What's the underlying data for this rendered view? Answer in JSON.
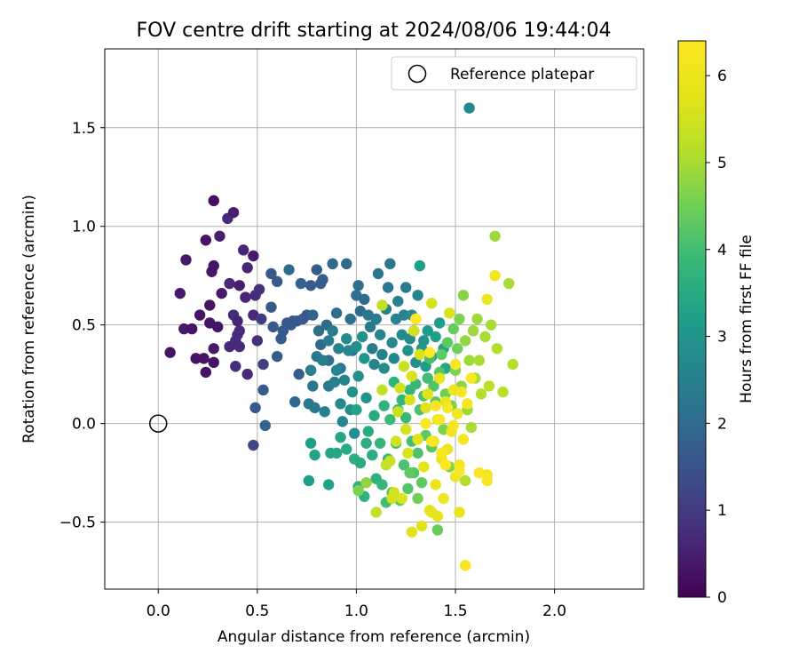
{
  "chart_data": {
    "type": "scatter",
    "title": "FOV centre drift starting at 2024/08/06 19:44:04",
    "xlabel": "Angular distance from reference (arcmin)",
    "ylabel": "Rotation from reference (arcmin)",
    "xlim": [
      -0.27,
      2.45
    ],
    "ylim": [
      -0.84,
      1.9
    ],
    "xticks": [
      0.0,
      0.5,
      1.0,
      1.5,
      2.0
    ],
    "xtick_labels": [
      "0.0",
      "0.5",
      "1.0",
      "1.5",
      "2.0"
    ],
    "yticks": [
      -0.5,
      0.0,
      0.5,
      1.0,
      1.5
    ],
    "ytick_labels": [
      "−0.5",
      "0.0",
      "0.5",
      "1.0",
      "1.5"
    ],
    "grid": true,
    "legend": {
      "position": "upper-right",
      "entries": [
        "Reference platepar"
      ]
    },
    "reference_point": {
      "x": 0.0,
      "y": 0.0,
      "label": "Reference platepar"
    },
    "colorbar": {
      "label": "Hours from first FF file",
      "colormap": "viridis",
      "range": [
        0,
        6.4
      ],
      "ticks": [
        0,
        1,
        2,
        3,
        4,
        5,
        6
      ],
      "tick_labels": [
        "0",
        "1",
        "2",
        "3",
        "4",
        "5",
        "6"
      ]
    },
    "points": [
      [
        0.06,
        0.36,
        0.3
      ],
      [
        0.11,
        0.66,
        0.4
      ],
      [
        0.14,
        0.83,
        0.4
      ],
      [
        0.13,
        0.48,
        0.4
      ],
      [
        0.17,
        0.48,
        0.3
      ],
      [
        0.19,
        0.33,
        0.3
      ],
      [
        0.21,
        0.55,
        0.3
      ],
      [
        0.23,
        0.33,
        0.3
      ],
      [
        0.24,
        0.26,
        0.3
      ],
      [
        0.26,
        0.51,
        0.3
      ],
      [
        0.26,
        0.6,
        0.3
      ],
      [
        0.27,
        0.77,
        0.4
      ],
      [
        0.28,
        0.8,
        0.3
      ],
      [
        0.28,
        0.38,
        0.4
      ],
      [
        0.28,
        0.31,
        0.3
      ],
      [
        0.28,
        1.13,
        0.2
      ],
      [
        0.3,
        0.49,
        0.3
      ],
      [
        0.31,
        0.95,
        0.5
      ],
      [
        0.32,
        0.66,
        0.4
      ],
      [
        0.24,
        0.93,
        0.3
      ],
      [
        0.35,
        1.04,
        0.7
      ],
      [
        0.36,
        0.71,
        0.7
      ],
      [
        0.36,
        0.39,
        0.7
      ],
      [
        0.38,
        1.07,
        0.5
      ],
      [
        0.38,
        0.55,
        0.7
      ],
      [
        0.39,
        0.42,
        0.7
      ],
      [
        0.39,
        0.29,
        0.8
      ],
      [
        0.4,
        0.45,
        0.7
      ],
      [
        0.41,
        0.39,
        0.7
      ],
      [
        0.4,
        0.52,
        0.6
      ],
      [
        0.41,
        0.7,
        0.5
      ],
      [
        0.43,
        0.88,
        0.6
      ],
      [
        0.45,
        0.79,
        0.6
      ],
      [
        0.44,
        0.64,
        0.6
      ],
      [
        0.45,
        0.25,
        0.7
      ],
      [
        0.41,
        0.47,
        0.7
      ],
      [
        0.48,
        0.85,
        0.4
      ],
      [
        0.48,
        0.55,
        0.7
      ],
      [
        0.49,
        0.65,
        0.7
      ],
      [
        0.5,
        0.42,
        0.8
      ],
      [
        0.51,
        0.68,
        0.8
      ],
      [
        0.52,
        0.53,
        1.0
      ],
      [
        0.53,
        0.3,
        1.1
      ],
      [
        0.48,
        -0.11,
        1.2
      ],
      [
        0.49,
        0.08,
        1.6
      ],
      [
        0.53,
        0.17,
        1.7
      ],
      [
        0.54,
        -0.01,
        1.8
      ],
      [
        0.57,
        0.59,
        1.6
      ],
      [
        0.57,
        0.76,
        1.6
      ],
      [
        0.58,
        0.49,
        1.6
      ],
      [
        0.6,
        0.72,
        1.6
      ],
      [
        0.6,
        0.34,
        1.6
      ],
      [
        0.62,
        0.43,
        1.6
      ],
      [
        0.63,
        0.47,
        1.6
      ],
      [
        0.65,
        0.51,
        1.6
      ],
      [
        0.66,
        0.78,
        2.0
      ],
      [
        0.68,
        0.52,
        1.6
      ],
      [
        0.69,
        0.11,
        1.9
      ],
      [
        0.7,
        0.52,
        1.6
      ],
      [
        0.72,
        0.71,
        1.8
      ],
      [
        0.71,
        0.25,
        1.7
      ],
      [
        0.67,
        0.5,
        1.6
      ],
      [
        0.73,
        0.53,
        1.6
      ],
      [
        0.75,
        0.55,
        1.6
      ],
      [
        0.77,
        0.7,
        1.7
      ],
      [
        0.78,
        0.55,
        1.8
      ],
      [
        0.8,
        0.78,
        1.7
      ],
      [
        0.82,
        0.71,
        1.7
      ],
      [
        0.83,
        0.73,
        1.7
      ],
      [
        0.81,
        0.47,
        2.1
      ],
      [
        0.82,
        0.4,
        2.0
      ],
      [
        0.85,
        0.5,
        2.0
      ],
      [
        0.86,
        0.32,
        2.1
      ],
      [
        0.88,
        0.81,
        2.0
      ],
      [
        0.9,
        0.56,
        2.1
      ],
      [
        0.92,
        0.28,
        2.3
      ],
      [
        0.95,
        0.81,
        2.0
      ],
      [
        0.97,
        0.53,
        2.1
      ],
      [
        0.98,
        0.37,
        2.1
      ],
      [
        1.0,
        0.65,
        2.1
      ],
      [
        1.01,
        0.7,
        2.1
      ],
      [
        1.02,
        0.57,
        2.0
      ],
      [
        1.04,
        0.63,
        2.0
      ],
      [
        0.77,
        0.27,
        2.4
      ],
      [
        0.76,
        0.1,
        2.3
      ],
      [
        0.78,
        0.19,
        2.3
      ],
      [
        0.79,
        0.08,
        2.3
      ],
      [
        0.8,
        0.34,
        2.3
      ],
      [
        0.77,
        0.27,
        2.5
      ],
      [
        0.86,
        0.19,
        2.3
      ],
      [
        0.83,
        0.32,
        2.4
      ],
      [
        0.84,
        0.06,
        2.5
      ],
      [
        0.86,
        0.42,
        2.4
      ],
      [
        0.88,
        0.47,
        2.4
      ],
      [
        0.89,
        0.21,
        2.5
      ],
      [
        0.9,
        0.27,
        2.6
      ],
      [
        0.91,
        0.38,
        2.6
      ],
      [
        0.92,
        0.1,
        2.7
      ],
      [
        0.93,
        0.01,
        2.6
      ],
      [
        0.94,
        0.22,
        2.6
      ],
      [
        0.95,
        0.43,
        2.7
      ],
      [
        0.96,
        0.37,
        2.7
      ],
      [
        0.97,
        0.07,
        2.8
      ],
      [
        0.98,
        0.16,
        2.9
      ],
      [
        0.99,
        -0.05,
        2.9
      ],
      [
        1.0,
        0.39,
        2.8
      ],
      [
        1.01,
        0.24,
        2.9
      ],
      [
        1.03,
        0.44,
        2.9
      ],
      [
        1.04,
        0.33,
        3.0
      ],
      [
        1.05,
        0.13,
        3.0
      ],
      [
        1.06,
        0.55,
        2.3
      ],
      [
        1.07,
        0.49,
        2.3
      ],
      [
        1.08,
        0.38,
        2.4
      ],
      [
        1.09,
        0.3,
        2.6
      ],
      [
        1.1,
        0.53,
        2.4
      ],
      [
        1.11,
        0.76,
        2.3
      ],
      [
        1.12,
        0.45,
        2.6
      ],
      [
        1.13,
        0.35,
        2.5
      ],
      [
        1.14,
        0.28,
        2.8
      ],
      [
        1.15,
        0.58,
        2.5
      ],
      [
        1.16,
        0.69,
        2.3
      ],
      [
        1.17,
        0.81,
        2.3
      ],
      [
        1.18,
        0.41,
        2.7
      ],
      [
        1.19,
        0.33,
        2.7
      ],
      [
        1.2,
        0.53,
        2.6
      ],
      [
        1.21,
        0.62,
        2.5
      ],
      [
        1.23,
        0.45,
        2.8
      ],
      [
        1.24,
        0.55,
        2.6
      ],
      [
        1.25,
        0.69,
        2.4
      ],
      [
        1.26,
        0.37,
        2.9
      ],
      [
        1.27,
        0.43,
        2.8
      ],
      [
        1.28,
        0.55,
        2.7
      ],
      [
        1.29,
        0.47,
        3.0
      ],
      [
        1.3,
        0.31,
        2.9
      ],
      [
        1.31,
        0.65,
        2.6
      ],
      [
        1.32,
        0.8,
        3.2
      ],
      [
        1.33,
        0.38,
        3.1
      ],
      [
        1.34,
        0.42,
        3.0
      ],
      [
        1.35,
        0.29,
        3.1
      ],
      [
        1.36,
        0.47,
        3.1
      ],
      [
        1.38,
        0.34,
        3.1
      ],
      [
        1.4,
        0.44,
        3.2
      ],
      [
        1.42,
        0.51,
        3.2
      ],
      [
        1.44,
        0.38,
        3.3
      ],
      [
        1.45,
        0.28,
        3.4
      ],
      [
        1.57,
        1.6,
        2.7
      ],
      [
        0.76,
        -0.29,
        3.2
      ],
      [
        0.77,
        -0.1,
        3.2
      ],
      [
        0.79,
        -0.16,
        3.3
      ],
      [
        0.86,
        -0.31,
        3.3
      ],
      [
        0.87,
        -0.15,
        3.4
      ],
      [
        0.9,
        -0.15,
        3.4
      ],
      [
        0.92,
        -0.07,
        3.4
      ],
      [
        0.95,
        -0.13,
        3.5
      ],
      [
        0.99,
        -0.18,
        3.6
      ],
      [
        1.0,
        0.07,
        3.3
      ],
      [
        1.01,
        -0.32,
        3.6
      ],
      [
        1.02,
        -0.2,
        3.5
      ],
      [
        1.04,
        -0.37,
        3.7
      ],
      [
        1.05,
        -0.1,
        3.6
      ],
      [
        1.06,
        -0.04,
        3.5
      ],
      [
        1.08,
        -0.16,
        3.6
      ],
      [
        1.09,
        0.04,
        3.5
      ],
      [
        1.1,
        -0.28,
        3.7
      ],
      [
        1.12,
        -0.1,
        3.8
      ],
      [
        1.13,
        -0.31,
        3.8
      ],
      [
        1.14,
        0.09,
        3.7
      ],
      [
        1.15,
        -0.4,
        4.0
      ],
      [
        1.16,
        -0.18,
        3.9
      ],
      [
        1.17,
        0.02,
        3.9
      ],
      [
        1.18,
        -0.35,
        4.1
      ],
      [
        1.19,
        0.21,
        3.7
      ],
      [
        1.2,
        -0.1,
        3.9
      ],
      [
        1.21,
        0.07,
        3.8
      ],
      [
        1.22,
        -0.39,
        4.3
      ],
      [
        1.23,
        0.12,
        3.8
      ],
      [
        1.24,
        -0.21,
        4.1
      ],
      [
        1.25,
        0.03,
        3.9
      ],
      [
        1.26,
        -0.33,
        4.2
      ],
      [
        1.27,
        0.17,
        3.8
      ],
      [
        1.28,
        -0.09,
        4.0
      ],
      [
        1.29,
        -0.25,
        4.2
      ],
      [
        1.3,
        0.2,
        3.9
      ],
      [
        1.31,
        -0.15,
        4.1
      ],
      [
        1.32,
        0.07,
        4.1
      ],
      [
        1.33,
        -0.3,
        4.3
      ],
      [
        1.34,
        0.14,
        4.1
      ],
      [
        1.35,
        -0.06,
        4.3
      ],
      [
        1.36,
        0.23,
        4.0
      ],
      [
        1.37,
        0.33,
        4.0
      ],
      [
        1.38,
        -0.12,
        4.3
      ],
      [
        1.39,
        0.19,
        4.2
      ],
      [
        1.4,
        0.11,
        4.3
      ],
      [
        1.41,
        -0.54,
        4.4
      ],
      [
        1.42,
        0.26,
        4.2
      ],
      [
        1.43,
        0.35,
        4.3
      ],
      [
        1.44,
        -0.03,
        4.6
      ],
      [
        1.45,
        0.15,
        4.5
      ],
      [
        1.46,
        0.41,
        4.3
      ],
      [
        1.47,
        -0.22,
        4.7
      ],
      [
        1.48,
        0.09,
        4.6
      ],
      [
        1.49,
        0.48,
        4.4
      ],
      [
        1.5,
        0.27,
        4.6
      ],
      [
        1.51,
        0.38,
        4.5
      ],
      [
        1.52,
        0.53,
        4.6
      ],
      [
        1.53,
        0.19,
        4.8
      ],
      [
        1.54,
        0.65,
        4.7
      ],
      [
        1.55,
        0.42,
        4.8
      ],
      [
        1.56,
        0.07,
        4.9
      ],
      [
        1.57,
        0.32,
        4.9
      ],
      [
        1.58,
        -0.02,
        5.0
      ],
      [
        1.59,
        0.47,
        4.9
      ],
      [
        1.6,
        0.23,
        5.0
      ],
      [
        1.61,
        0.53,
        4.9
      ],
      [
        1.62,
        0.32,
        5.0
      ],
      [
        1.63,
        0.15,
        5.1
      ],
      [
        1.65,
        0.44,
        5.0
      ],
      [
        1.67,
        0.19,
        5.2
      ],
      [
        1.68,
        0.5,
        5.0
      ],
      [
        1.7,
        0.95,
        4.9
      ],
      [
        1.71,
        0.38,
        5.1
      ],
      [
        1.74,
        0.16,
        5.2
      ],
      [
        1.77,
        0.71,
        5.0
      ],
      [
        1.79,
        0.3,
        5.1
      ],
      [
        1.55,
        -0.29,
        5.1
      ],
      [
        1.13,
        0.6,
        5.3
      ],
      [
        1.13,
        0.17,
        5.3
      ],
      [
        1.15,
        -0.21,
        5.3
      ],
      [
        1.17,
        -0.19,
        5.4
      ],
      [
        1.18,
        -0.38,
        5.5
      ],
      [
        1.19,
        -0.35,
        5.5
      ],
      [
        1.2,
        -0.09,
        5.5
      ],
      [
        1.21,
        0.06,
        5.4
      ],
      [
        1.22,
        0.18,
        5.5
      ],
      [
        1.24,
        0.29,
        5.4
      ],
      [
        1.25,
        -0.03,
        5.6
      ],
      [
        1.26,
        -0.15,
        5.6
      ],
      [
        1.27,
        0.12,
        5.6
      ],
      [
        1.28,
        0.24,
        5.6
      ],
      [
        1.29,
        0.47,
        5.5
      ],
      [
        1.3,
        0.53,
        5.4
      ],
      [
        1.31,
        -0.08,
        5.7
      ],
      [
        1.32,
        0.35,
        5.6
      ],
      [
        1.33,
        -0.52,
        5.7
      ],
      [
        1.34,
        -0.22,
        5.8
      ],
      [
        1.35,
        0.08,
        5.7
      ],
      [
        1.36,
        0.15,
        5.7
      ],
      [
        1.37,
        -0.44,
        5.8
      ],
      [
        1.38,
        0.61,
        5.5
      ],
      [
        1.39,
        -0.09,
        5.8
      ],
      [
        1.4,
        -0.31,
        5.9
      ],
      [
        1.41,
        0.02,
        5.9
      ],
      [
        1.42,
        0.23,
        5.8
      ],
      [
        1.43,
        -0.18,
        5.9
      ],
      [
        1.44,
        -0.38,
        6.0
      ],
      [
        1.45,
        0.11,
        5.9
      ],
      [
        1.46,
        -0.13,
        6.0
      ],
      [
        1.47,
        0.56,
        5.6
      ],
      [
        1.48,
        -0.04,
        6.0
      ],
      [
        1.49,
        0.17,
        6.0
      ],
      [
        1.5,
        -0.27,
        6.1
      ],
      [
        1.51,
        0.05,
        6.1
      ],
      [
        1.52,
        -0.21,
        6.1
      ],
      [
        1.53,
        0.16,
        6.2
      ],
      [
        1.54,
        -0.08,
        6.2
      ],
      [
        1.55,
        -0.72,
        6.2
      ],
      [
        1.56,
        0.1,
        6.2
      ],
      [
        1.58,
        0.23,
        6.3
      ],
      [
        1.38,
        -0.09,
        6.3
      ],
      [
        1.42,
        0.02,
        6.3
      ],
      [
        1.4,
        0.09,
        6.2
      ],
      [
        1.45,
        -0.21,
        6.4
      ],
      [
        1.37,
        0.36,
        6.4
      ],
      [
        1.5,
        0.3,
        6.3
      ],
      [
        1.49,
        -0.01,
        6.2
      ],
      [
        1.52,
        -0.24,
        6.3
      ],
      [
        1.3,
        0.53,
        6.4
      ],
      [
        1.46,
        0.08,
        6.3
      ],
      [
        1.43,
        -0.15,
        6.2
      ],
      [
        1.35,
        0.0,
        6.3
      ],
      [
        1.62,
        -0.25,
        6.3
      ],
      [
        1.66,
        -0.29,
        6.2
      ],
      [
        1.7,
        0.75,
        6.1
      ],
      [
        1.66,
        0.63,
        6.0
      ],
      [
        1.52,
        -0.45,
        5.9
      ],
      [
        1.41,
        -0.47,
        5.8
      ],
      [
        1.38,
        -0.45,
        5.8
      ],
      [
        1.28,
        -0.55,
        5.7
      ],
      [
        1.23,
        -0.38,
        5.6
      ],
      [
        1.1,
        -0.45,
        5.3
      ],
      [
        1.05,
        -0.3,
        4.8
      ],
      [
        1.01,
        -0.34,
        4.6
      ],
      [
        1.66,
        -0.26,
        6.1
      ],
      [
        1.31,
        -0.38,
        4.5
      ],
      [
        1.27,
        -0.25,
        4.3
      ]
    ]
  }
}
